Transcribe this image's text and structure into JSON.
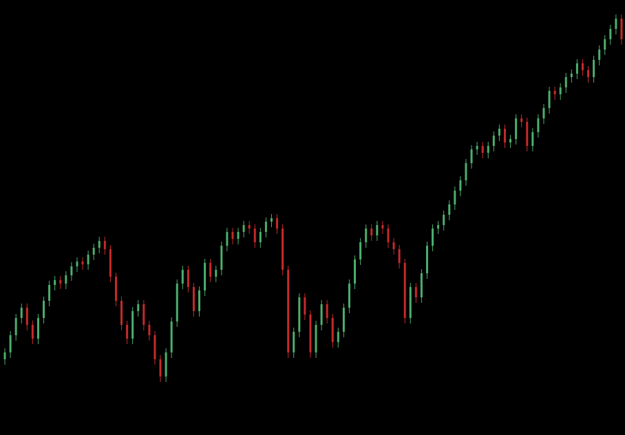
{
  "chart_data": {
    "type": "candlestick",
    "open": [
      110,
      120,
      145,
      170,
      185,
      160,
      140,
      170,
      195,
      218,
      225,
      220,
      232,
      245,
      252,
      248,
      262,
      272,
      282,
      270,
      230,
      195,
      160,
      140,
      180,
      190,
      160,
      145,
      110,
      85,
      120,
      165,
      220,
      240,
      215,
      180,
      210,
      250,
      230,
      240,
      275,
      295,
      285,
      295,
      305,
      300,
      280,
      295,
      310,
      315,
      300,
      240,
      120,
      150,
      200,
      175,
      120,
      160,
      190,
      170,
      135,
      150,
      185,
      220,
      255,
      280,
      300,
      290,
      305,
      300,
      280,
      270,
      250,
      170,
      215,
      200,
      235,
      275,
      300,
      305,
      320,
      335,
      355,
      370,
      395,
      415,
      420,
      410,
      420,
      435,
      445,
      425,
      430,
      460,
      455,
      420,
      440,
      460,
      475,
      500,
      495,
      505,
      520,
      525,
      540,
      530,
      520,
      545,
      560,
      575,
      590,
      605
    ],
    "high": [
      126,
      151,
      176,
      191,
      191,
      166,
      176,
      201,
      224,
      231,
      231,
      238,
      251,
      258,
      258,
      268,
      278,
      288,
      288,
      276,
      236,
      201,
      166,
      186,
      196,
      196,
      166,
      151,
      116,
      126,
      171,
      226,
      246,
      246,
      221,
      216,
      256,
      256,
      246,
      281,
      301,
      301,
      301,
      311,
      311,
      306,
      301,
      316,
      321,
      321,
      306,
      246,
      156,
      206,
      206,
      181,
      166,
      196,
      196,
      176,
      156,
      191,
      226,
      261,
      286,
      306,
      306,
      311,
      311,
      306,
      286,
      276,
      256,
      221,
      221,
      241,
      281,
      306,
      311,
      326,
      341,
      361,
      376,
      401,
      421,
      426,
      426,
      426,
      441,
      451,
      451,
      436,
      466,
      466,
      461,
      446,
      466,
      481,
      506,
      506,
      511,
      526,
      531,
      546,
      546,
      536,
      551,
      566,
      581,
      596,
      611,
      611
    ],
    "low": [
      102,
      112,
      137,
      162,
      152,
      132,
      132,
      162,
      187,
      210,
      212,
      212,
      224,
      237,
      240,
      240,
      254,
      264,
      262,
      222,
      187,
      152,
      132,
      132,
      172,
      152,
      137,
      102,
      77,
      77,
      112,
      157,
      212,
      207,
      172,
      172,
      202,
      222,
      222,
      232,
      267,
      277,
      277,
      287,
      292,
      272,
      272,
      287,
      302,
      292,
      232,
      112,
      112,
      142,
      167,
      112,
      112,
      152,
      162,
      127,
      127,
      142,
      177,
      212,
      247,
      272,
      282,
      282,
      292,
      272,
      262,
      242,
      162,
      162,
      192,
      192,
      227,
      267,
      292,
      297,
      312,
      327,
      347,
      362,
      387,
      407,
      402,
      402,
      412,
      427,
      417,
      417,
      422,
      447,
      412,
      412,
      432,
      452,
      467,
      487,
      487,
      497,
      512,
      517,
      522,
      512,
      512,
      537,
      552,
      567,
      582,
      567
    ],
    "close": [
      120,
      145,
      170,
      185,
      160,
      140,
      170,
      195,
      218,
      225,
      220,
      232,
      245,
      252,
      248,
      262,
      272,
      282,
      270,
      230,
      195,
      160,
      140,
      180,
      190,
      160,
      145,
      110,
      85,
      120,
      165,
      220,
      240,
      215,
      180,
      210,
      250,
      230,
      240,
      275,
      295,
      285,
      295,
      305,
      300,
      280,
      295,
      310,
      315,
      300,
      240,
      120,
      150,
      200,
      175,
      120,
      160,
      190,
      170,
      135,
      150,
      185,
      220,
      255,
      280,
      300,
      290,
      305,
      300,
      280,
      270,
      250,
      170,
      215,
      200,
      235,
      275,
      300,
      305,
      320,
      335,
      355,
      370,
      395,
      415,
      420,
      410,
      420,
      435,
      445,
      425,
      430,
      460,
      455,
      420,
      440,
      460,
      475,
      500,
      495,
      505,
      520,
      525,
      540,
      530,
      520,
      545,
      560,
      575,
      590,
      605,
      575
    ],
    "ylim": [
      0,
      632
    ],
    "up_color": "#4caf6e",
    "down_color": "#c62a2a"
  }
}
